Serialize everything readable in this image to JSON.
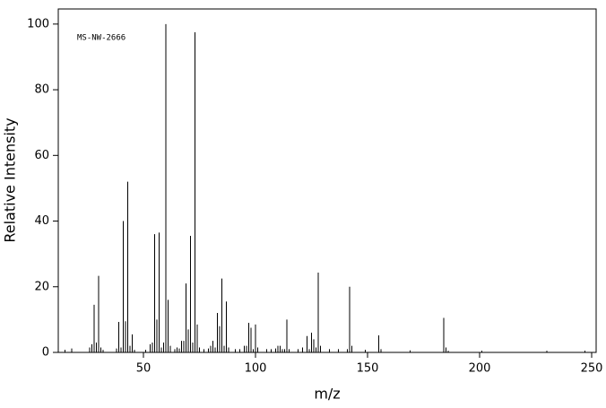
{
  "chart_data": {
    "type": "stem",
    "annotation": "MS-NW-2666",
    "x_label": "m/z",
    "y_label": "Relative Intensity",
    "color": "#000000",
    "x": [
      15,
      18,
      26,
      27,
      28,
      29,
      30,
      31,
      32,
      38,
      39,
      40,
      41,
      42,
      43,
      44,
      45,
      46,
      51,
      53,
      54,
      55,
      56,
      57,
      58,
      59,
      60,
      61,
      62,
      64,
      65,
      66,
      67,
      68,
      69,
      70,
      71,
      72,
      73,
      74,
      75,
      77,
      79,
      80,
      81,
      82,
      83,
      84,
      85,
      86,
      87,
      88,
      91,
      93,
      95,
      96,
      97,
      98,
      99,
      100,
      101,
      105,
      107,
      109,
      110,
      111,
      112,
      113,
      114,
      115,
      119,
      121,
      123,
      124,
      125,
      126,
      127,
      128,
      129,
      133,
      137,
      141,
      142,
      143,
      149,
      155,
      156,
      169,
      184,
      185,
      186,
      201,
      230,
      247
    ],
    "values": [
      0.8,
      1.2,
      1.5,
      2.5,
      14.5,
      3,
      23.3,
      1.5,
      0.8,
      1.2,
      9.3,
      1.5,
      40,
      9.5,
      52,
      2,
      5.5,
      0.8,
      0.8,
      2.5,
      3,
      36,
      10,
      36.5,
      1.5,
      3,
      100,
      16,
      2,
      1,
      1.5,
      1.2,
      3.5,
      3.5,
      21,
      7,
      35.5,
      3,
      97.5,
      8.5,
      1.5,
      1,
      1.2,
      2,
      3.5,
      1.5,
      12,
      8,
      22.5,
      2,
      15.5,
      1.5,
      1,
      1,
      2,
      2,
      9,
      7.5,
      1,
      8.5,
      1.5,
      1,
      1,
      1.2,
      2,
      2,
      1,
      1,
      10,
      1,
      1,
      1.5,
      5,
      1,
      6,
      4,
      1.5,
      24.3,
      2,
      1,
      1,
      1,
      20,
      2,
      0.8,
      5.2,
      1,
      0.6,
      10.5,
      1.5,
      0.5,
      0.5,
      0.5,
      0.5
    ],
    "xlim": [
      12,
      252
    ],
    "ylim": [
      0,
      104.6
    ],
    "xticks": [
      50,
      100,
      150,
      200,
      250
    ],
    "yticks": [
      0,
      20,
      40,
      60,
      80,
      100
    ]
  }
}
